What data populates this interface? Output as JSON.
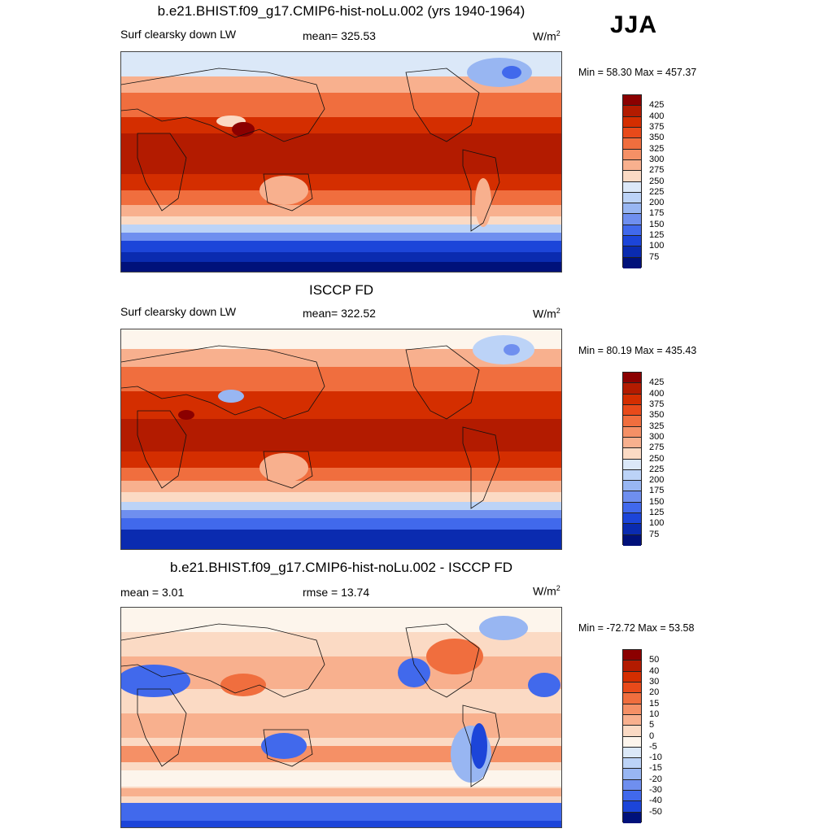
{
  "season": "JJA",
  "units_prefix": "W/m",
  "units_exp": "2",
  "panels": [
    {
      "title": "b.e21.BHIST.f09_g17.CMIP6-hist-noLu.002 (yrs 1940-1964)",
      "left_label": "Surf clearsky down LW",
      "center_label": "mean= 325.53",
      "minmax": "Min =  58.30 Max = 457.37"
    },
    {
      "title": "ISCCP FD",
      "left_label": "Surf clearsky down LW",
      "center_label": "mean= 322.52",
      "minmax": "Min =  80.19 Max = 435.43"
    },
    {
      "title": "b.e21.BHIST.f09_g17.CMIP6-hist-noLu.002 - ISCCP FD",
      "left_label": "mean =   3.01",
      "center_label": "rmse =  13.74",
      "minmax": "Min = -72.72 Max =  53.58"
    }
  ],
  "colorbar_abs": {
    "labels": [
      "425",
      "400",
      "375",
      "350",
      "325",
      "300",
      "275",
      "250",
      "225",
      "200",
      "175",
      "150",
      "125",
      "100",
      "75"
    ],
    "colors": [
      "#8b0000",
      "#b31b00",
      "#d42e00",
      "#e84a1a",
      "#f06e3e",
      "#f59066",
      "#f8b08e",
      "#fbdac4",
      "#dbe8f8",
      "#bcd3f7",
      "#98b6f2",
      "#6f8fef",
      "#4169ec",
      "#1c45d9",
      "#0a2bb0",
      "#00117a"
    ]
  },
  "colorbar_diff": {
    "labels": [
      "50",
      "40",
      "30",
      "20",
      "15",
      "10",
      "5",
      "0",
      "-5",
      "-10",
      "-15",
      "-20",
      "-30",
      "-40",
      "-50"
    ],
    "colors": [
      "#8b0000",
      "#b31b00",
      "#d42e00",
      "#e84a1a",
      "#f06e3e",
      "#f59066",
      "#f8b08e",
      "#fbdac4",
      "#fdf5ec",
      "#dbe8f8",
      "#bcd3f7",
      "#98b6f2",
      "#6f8fef",
      "#4169ec",
      "#1c45d9",
      "#00117a"
    ]
  }
}
